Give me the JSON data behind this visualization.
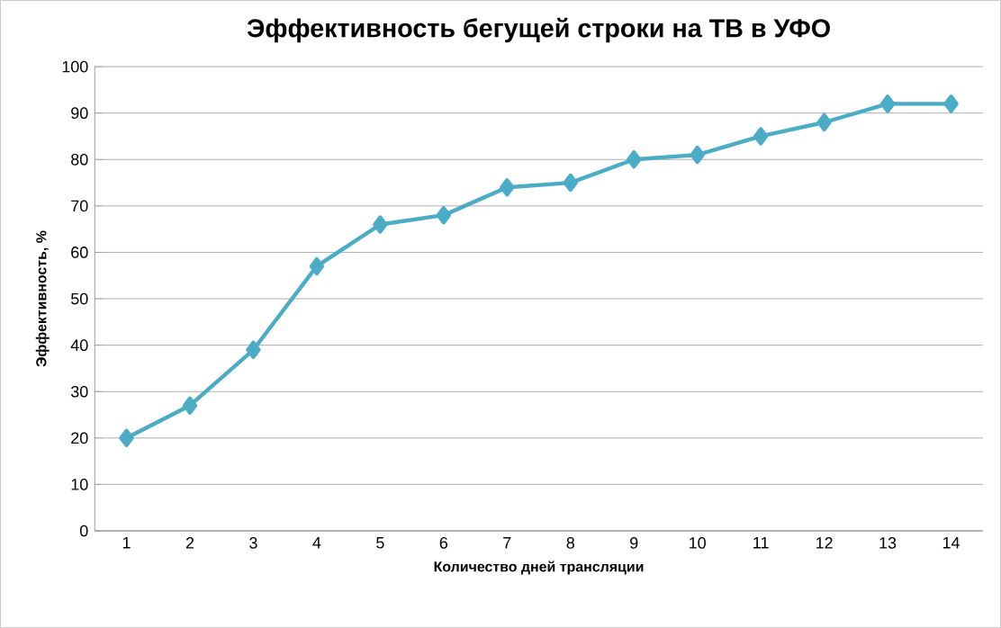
{
  "chart_data": {
    "type": "line",
    "title": "Эффективность бегущей строки на ТВ в УФО",
    "xlabel": "Количество дней трансляции",
    "ylabel": "Эффективность, %",
    "categories": [
      "1",
      "2",
      "3",
      "4",
      "5",
      "6",
      "7",
      "8",
      "9",
      "10",
      "11",
      "12",
      "13",
      "14"
    ],
    "series": [
      {
        "color": "#4bacc6",
        "values": [
          20,
          27,
          39,
          57,
          66,
          68,
          74,
          75,
          80,
          81,
          85,
          88,
          92,
          92
        ]
      }
    ],
    "ylim": [
      0,
      100
    ],
    "yticks": [
      0,
      10,
      20,
      30,
      40,
      50,
      60,
      70,
      80,
      90,
      100
    ],
    "grid": "y",
    "marker": "diamond",
    "line_style": "solid"
  }
}
